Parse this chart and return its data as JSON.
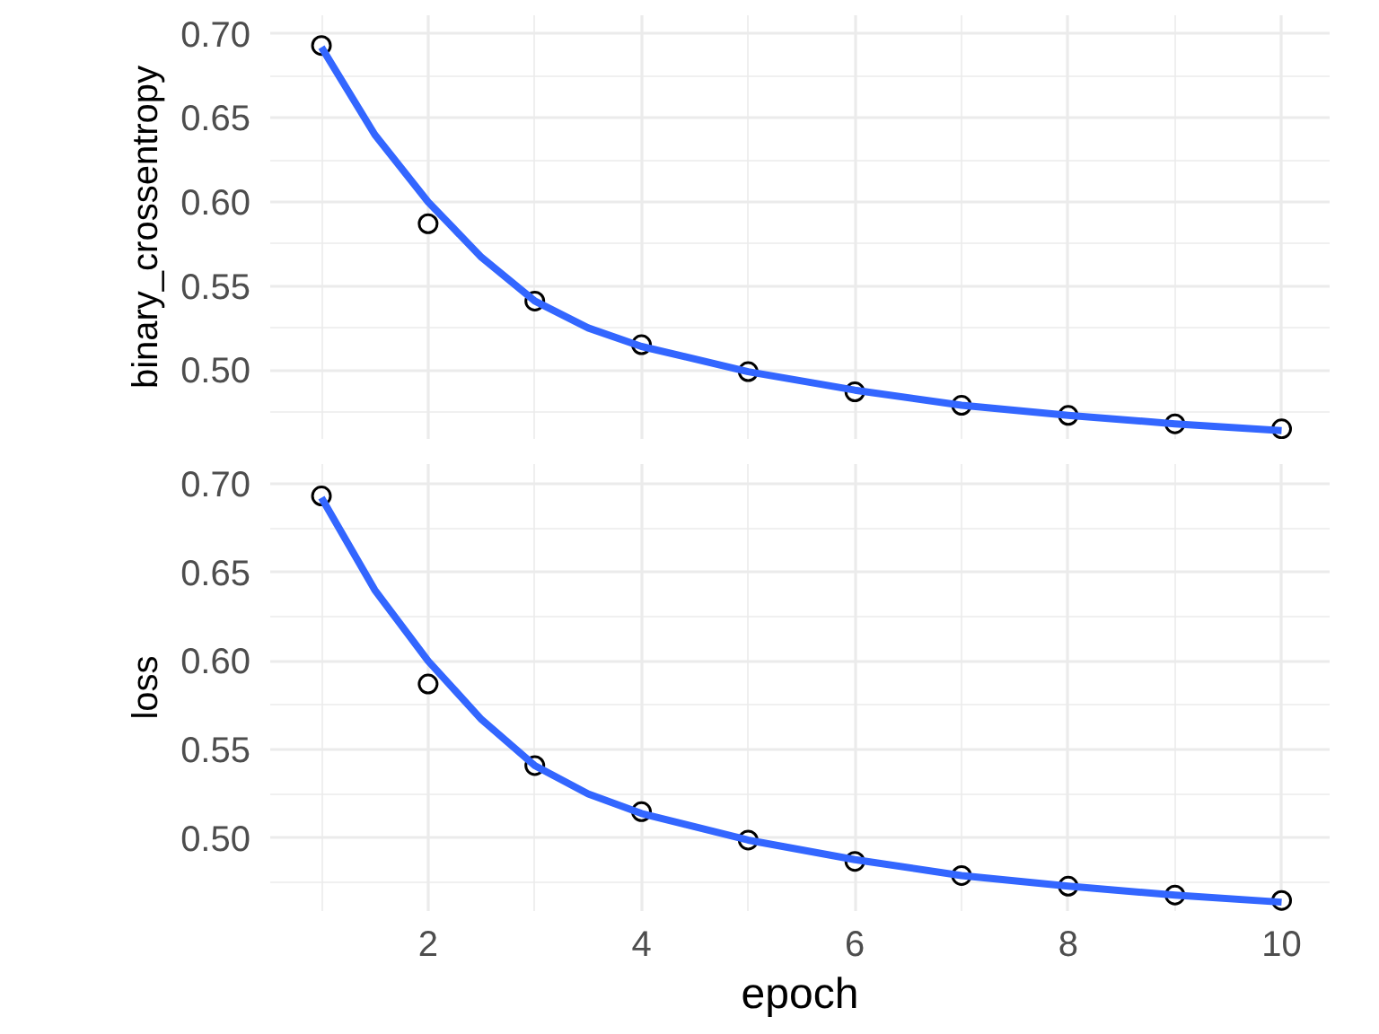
{
  "chart_data": [
    {
      "type": "scatter",
      "ylabel": "binary_crossentropy",
      "x": [
        1,
        2,
        3,
        4,
        5,
        6,
        7,
        8,
        9,
        10
      ],
      "xlim": [
        0.52,
        10.45
      ],
      "xticks": [
        2,
        4,
        6,
        8,
        10
      ],
      "ylim": [
        0.459,
        0.711
      ],
      "yticks": [
        {
          "value": 0.5,
          "label": "0.50"
        },
        {
          "value": 0.55,
          "label": "0.55"
        },
        {
          "value": 0.6,
          "label": "0.60"
        },
        {
          "value": 0.65,
          "label": "0.65"
        },
        {
          "value": 0.7,
          "label": "0.70"
        }
      ],
      "grid": true,
      "tick_labels": "y",
      "series": [
        {
          "color": "#000000",
          "marker": "circle",
          "values": [
            0.693,
            0.587,
            0.541,
            0.515,
            0.499,
            0.487,
            0.479,
            0.473,
            0.468,
            0.465
          ]
        },
        {
          "type": "line",
          "marker": "none",
          "color": "#3366ff",
          "x": [
            1,
            1.5,
            2,
            2.5,
            3,
            3.5,
            4,
            5,
            6,
            7,
            8,
            9,
            10
          ],
          "values": [
            0.692,
            0.64,
            0.6,
            0.567,
            0.541,
            0.525,
            0.514,
            0.499,
            0.488,
            0.479,
            0.473,
            0.468,
            0.464
          ]
        }
      ]
    },
    {
      "type": "scatter",
      "ylabel": "loss",
      "xlabel": "epoch",
      "x": [
        1,
        2,
        3,
        4,
        5,
        6,
        7,
        8,
        9,
        10
      ],
      "xlim": [
        0.52,
        10.45
      ],
      "xticks": [
        2,
        4,
        6,
        8,
        10
      ],
      "ylim": [
        0.459,
        0.711
      ],
      "yticks": [
        {
          "value": 0.5,
          "label": "0.50"
        },
        {
          "value": 0.55,
          "label": "0.55"
        },
        {
          "value": 0.6,
          "label": "0.60"
        },
        {
          "value": 0.65,
          "label": "0.65"
        },
        {
          "value": 0.7,
          "label": "0.70"
        }
      ],
      "grid": true,
      "series": [
        {
          "color": "#000000",
          "marker": "circle",
          "values": [
            0.693,
            0.587,
            0.541,
            0.515,
            0.499,
            0.487,
            0.479,
            0.473,
            0.468,
            0.465
          ]
        },
        {
          "type": "line",
          "marker": "none",
          "color": "#3366ff",
          "x": [
            1,
            1.5,
            2,
            2.5,
            3,
            3.5,
            4,
            5,
            6,
            7,
            8,
            9,
            10
          ],
          "values": [
            0.692,
            0.64,
            0.6,
            0.567,
            0.541,
            0.525,
            0.514,
            0.499,
            0.488,
            0.479,
            0.473,
            0.468,
            0.464
          ]
        }
      ]
    }
  ]
}
